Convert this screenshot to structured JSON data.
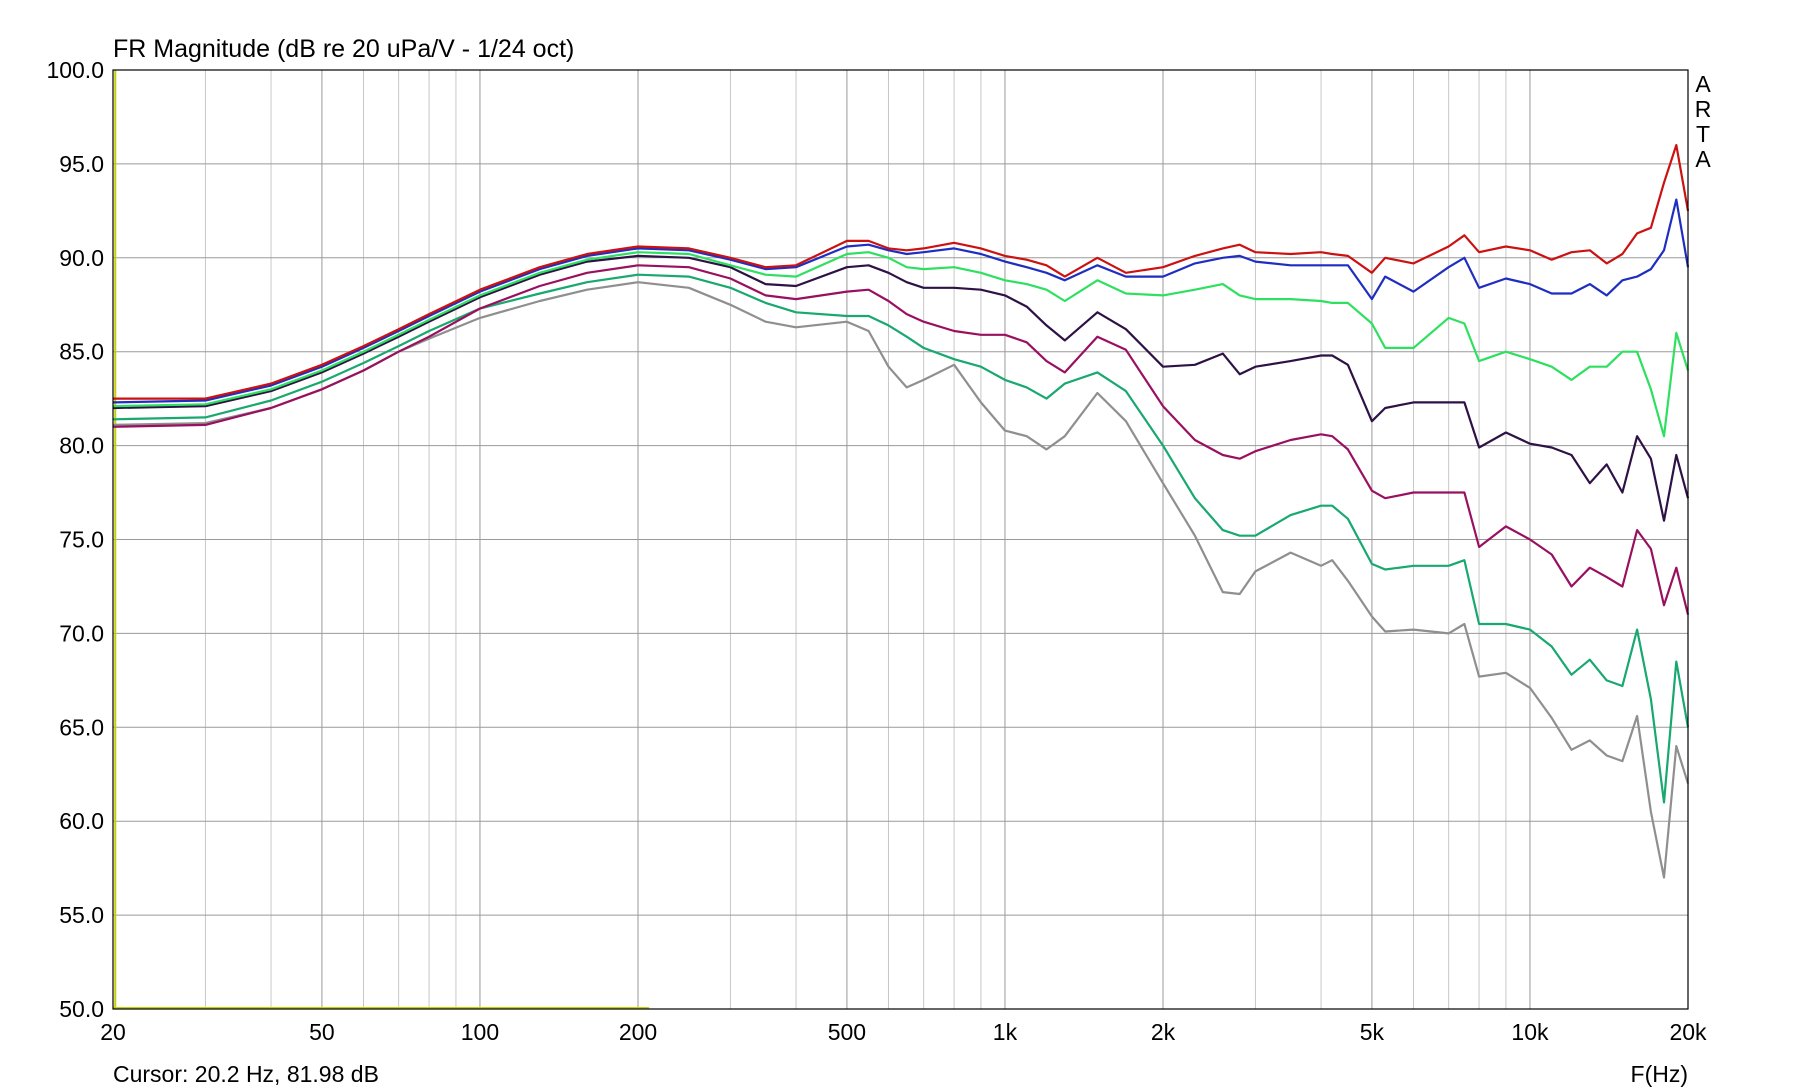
{
  "chart_data": {
    "type": "line",
    "title": "FR Magnitude (dB re 20 uPa/V - 1/24 oct)",
    "xlabel": "F(Hz)",
    "ylabel": "",
    "x_scale": "log",
    "xlim": [
      20,
      20000
    ],
    "ylim": [
      50,
      100
    ],
    "grid": true,
    "x_ticks": [
      20,
      50,
      100,
      200,
      500,
      1000,
      2000,
      5000,
      10000,
      20000
    ],
    "x_tick_labels": [
      "20",
      "50",
      "100",
      "200",
      "500",
      "1k",
      "2k",
      "5k",
      "10k",
      "20k"
    ],
    "y_ticks": [
      50,
      55,
      60,
      65,
      70,
      75,
      80,
      85,
      90,
      95,
      100
    ],
    "y_tick_labels": [
      "50.0",
      "55.0",
      "60.0",
      "65.0",
      "70.0",
      "75.0",
      "80.0",
      "85.0",
      "90.0",
      "95.0",
      "100.0"
    ],
    "x": [
      20,
      30,
      40,
      50,
      60,
      70,
      80,
      100,
      130,
      160,
      200,
      250,
      300,
      350,
      400,
      500,
      550,
      600,
      650,
      700,
      800,
      900,
      1000,
      1100,
      1200,
      1300,
      1500,
      1700,
      2000,
      2300,
      2600,
      2800,
      3000,
      3500,
      4000,
      4200,
      4500,
      5000,
      5300,
      6000,
      7000,
      7500,
      8000,
      9000,
      10000,
      11000,
      12000,
      13000,
      14000,
      15000,
      16000,
      17000,
      18000,
      19000,
      20000
    ],
    "series": [
      {
        "color": "#cc1111",
        "values": [
          82.5,
          82.5,
          83.3,
          84.3,
          85.3,
          86.2,
          87,
          88.3,
          89.5,
          90.2,
          90.6,
          90.5,
          90,
          89.5,
          89.6,
          90.9,
          90.9,
          90.5,
          90.4,
          90.5,
          90.8,
          90.5,
          90.1,
          89.9,
          89.6,
          89,
          90,
          89.2,
          89.5,
          90.1,
          90.5,
          90.7,
          90.3,
          90.2,
          90.3,
          90.2,
          90.1,
          89.2,
          90,
          89.7,
          90.6,
          91.2,
          90.3,
          90.6,
          90.4,
          89.9,
          90.3,
          90.4,
          89.7,
          90.2,
          91.3,
          91.6,
          94,
          96,
          92.5
        ]
      },
      {
        "color": "#1f2ec0",
        "values": [
          82.3,
          82.4,
          83.2,
          84.2,
          85.2,
          86.1,
          86.9,
          88.2,
          89.4,
          90.1,
          90.5,
          90.4,
          89.9,
          89.4,
          89.5,
          90.6,
          90.7,
          90.4,
          90.2,
          90.3,
          90.5,
          90.2,
          89.8,
          89.5,
          89.2,
          88.8,
          89.6,
          89,
          89,
          89.7,
          90,
          90.1,
          89.8,
          89.6,
          89.6,
          89.6,
          89.6,
          87.8,
          89,
          88.2,
          89.5,
          90,
          88.4,
          88.9,
          88.6,
          88.1,
          88.1,
          88.6,
          88,
          88.8,
          89,
          89.4,
          90.4,
          93.1,
          89.5
        ]
      },
      {
        "color": "#2ee060",
        "values": [
          82.1,
          82.2,
          83,
          84,
          85,
          85.9,
          86.7,
          88,
          89.2,
          89.9,
          90.3,
          90.2,
          89.6,
          89.1,
          89,
          90.2,
          90.3,
          90,
          89.5,
          89.4,
          89.5,
          89.2,
          88.8,
          88.6,
          88.3,
          87.7,
          88.8,
          88.1,
          88,
          88.3,
          88.6,
          88,
          87.8,
          87.8,
          87.7,
          87.6,
          87.6,
          86.5,
          85.2,
          85.2,
          86.8,
          86.5,
          84.5,
          85,
          84.6,
          84.2,
          83.5,
          84.2,
          84.2,
          85,
          85,
          83,
          80.5,
          86,
          84
        ]
      },
      {
        "color": "#2e1245",
        "values": [
          82,
          82.1,
          82.9,
          83.9,
          84.9,
          85.8,
          86.6,
          87.9,
          89.1,
          89.8,
          90.1,
          90,
          89.5,
          88.6,
          88.5,
          89.5,
          89.6,
          89.2,
          88.7,
          88.4,
          88.4,
          88.3,
          88,
          87.4,
          86.4,
          85.6,
          87.1,
          86.2,
          84.2,
          84.3,
          84.9,
          83.8,
          84.2,
          84.5,
          84.8,
          84.8,
          84.3,
          81.3,
          82,
          82.3,
          82.3,
          82.3,
          79.9,
          80.7,
          80.1,
          79.9,
          79.5,
          78,
          79,
          77.5,
          80.5,
          79.3,
          76,
          79.5,
          77.2
        ]
      },
      {
        "color": "#9a1060",
        "values": [
          81,
          81.1,
          82,
          83,
          84,
          85,
          85.8,
          87.3,
          88.5,
          89.2,
          89.6,
          89.5,
          88.9,
          88,
          87.8,
          88.2,
          88.3,
          87.7,
          87,
          86.6,
          86.1,
          85.9,
          85.9,
          85.5,
          84.5,
          83.9,
          85.8,
          85.1,
          82.1,
          80.3,
          79.5,
          79.3,
          79.7,
          80.3,
          80.6,
          80.5,
          79.8,
          77.6,
          77.2,
          77.5,
          77.5,
          77.5,
          74.6,
          75.7,
          75,
          74.2,
          72.5,
          73.5,
          73,
          72.5,
          75.5,
          74.5,
          71.5,
          73.5,
          71
        ]
      },
      {
        "color": "#18a870",
        "values": [
          81.4,
          81.5,
          82.4,
          83.4,
          84.4,
          85.3,
          86.1,
          87.3,
          88.1,
          88.7,
          89.1,
          89,
          88.4,
          87.6,
          87.1,
          86.9,
          86.9,
          86.4,
          85.8,
          85.2,
          84.6,
          84.2,
          83.5,
          83.1,
          82.5,
          83.3,
          83.9,
          82.9,
          80,
          77.2,
          75.5,
          75.2,
          75.2,
          76.3,
          76.8,
          76.8,
          76.1,
          73.7,
          73.4,
          73.6,
          73.6,
          73.9,
          70.5,
          70.5,
          70.2,
          69.3,
          67.8,
          68.6,
          67.5,
          67.2,
          70.2,
          66.5,
          61,
          68.5,
          65
        ]
      },
      {
        "color": "#8f8f8f",
        "values": [
          81.1,
          81.2,
          82,
          83,
          84,
          85,
          85.7,
          86.8,
          87.7,
          88.3,
          88.7,
          88.4,
          87.5,
          86.6,
          86.3,
          86.6,
          86.1,
          84.2,
          83.1,
          83.5,
          84.3,
          82.3,
          80.8,
          80.5,
          79.8,
          80.5,
          82.8,
          81.3,
          78,
          75.2,
          72.2,
          72.1,
          73.3,
          74.3,
          73.6,
          73.9,
          72.8,
          70.9,
          70.1,
          70.2,
          70,
          70.5,
          67.7,
          67.9,
          67.1,
          65.5,
          63.8,
          64.3,
          63.5,
          63.2,
          65.6,
          60.5,
          57,
          64,
          62
        ]
      }
    ]
  },
  "cursor": {
    "text": "Cursor: 20.2 Hz, 81.98 dB",
    "marker_color": "#c4d000",
    "marker_x_hz": 20.2,
    "marker_y_db": 50
  },
  "branding": {
    "letters": [
      "A",
      "R",
      "T",
      "A"
    ]
  }
}
